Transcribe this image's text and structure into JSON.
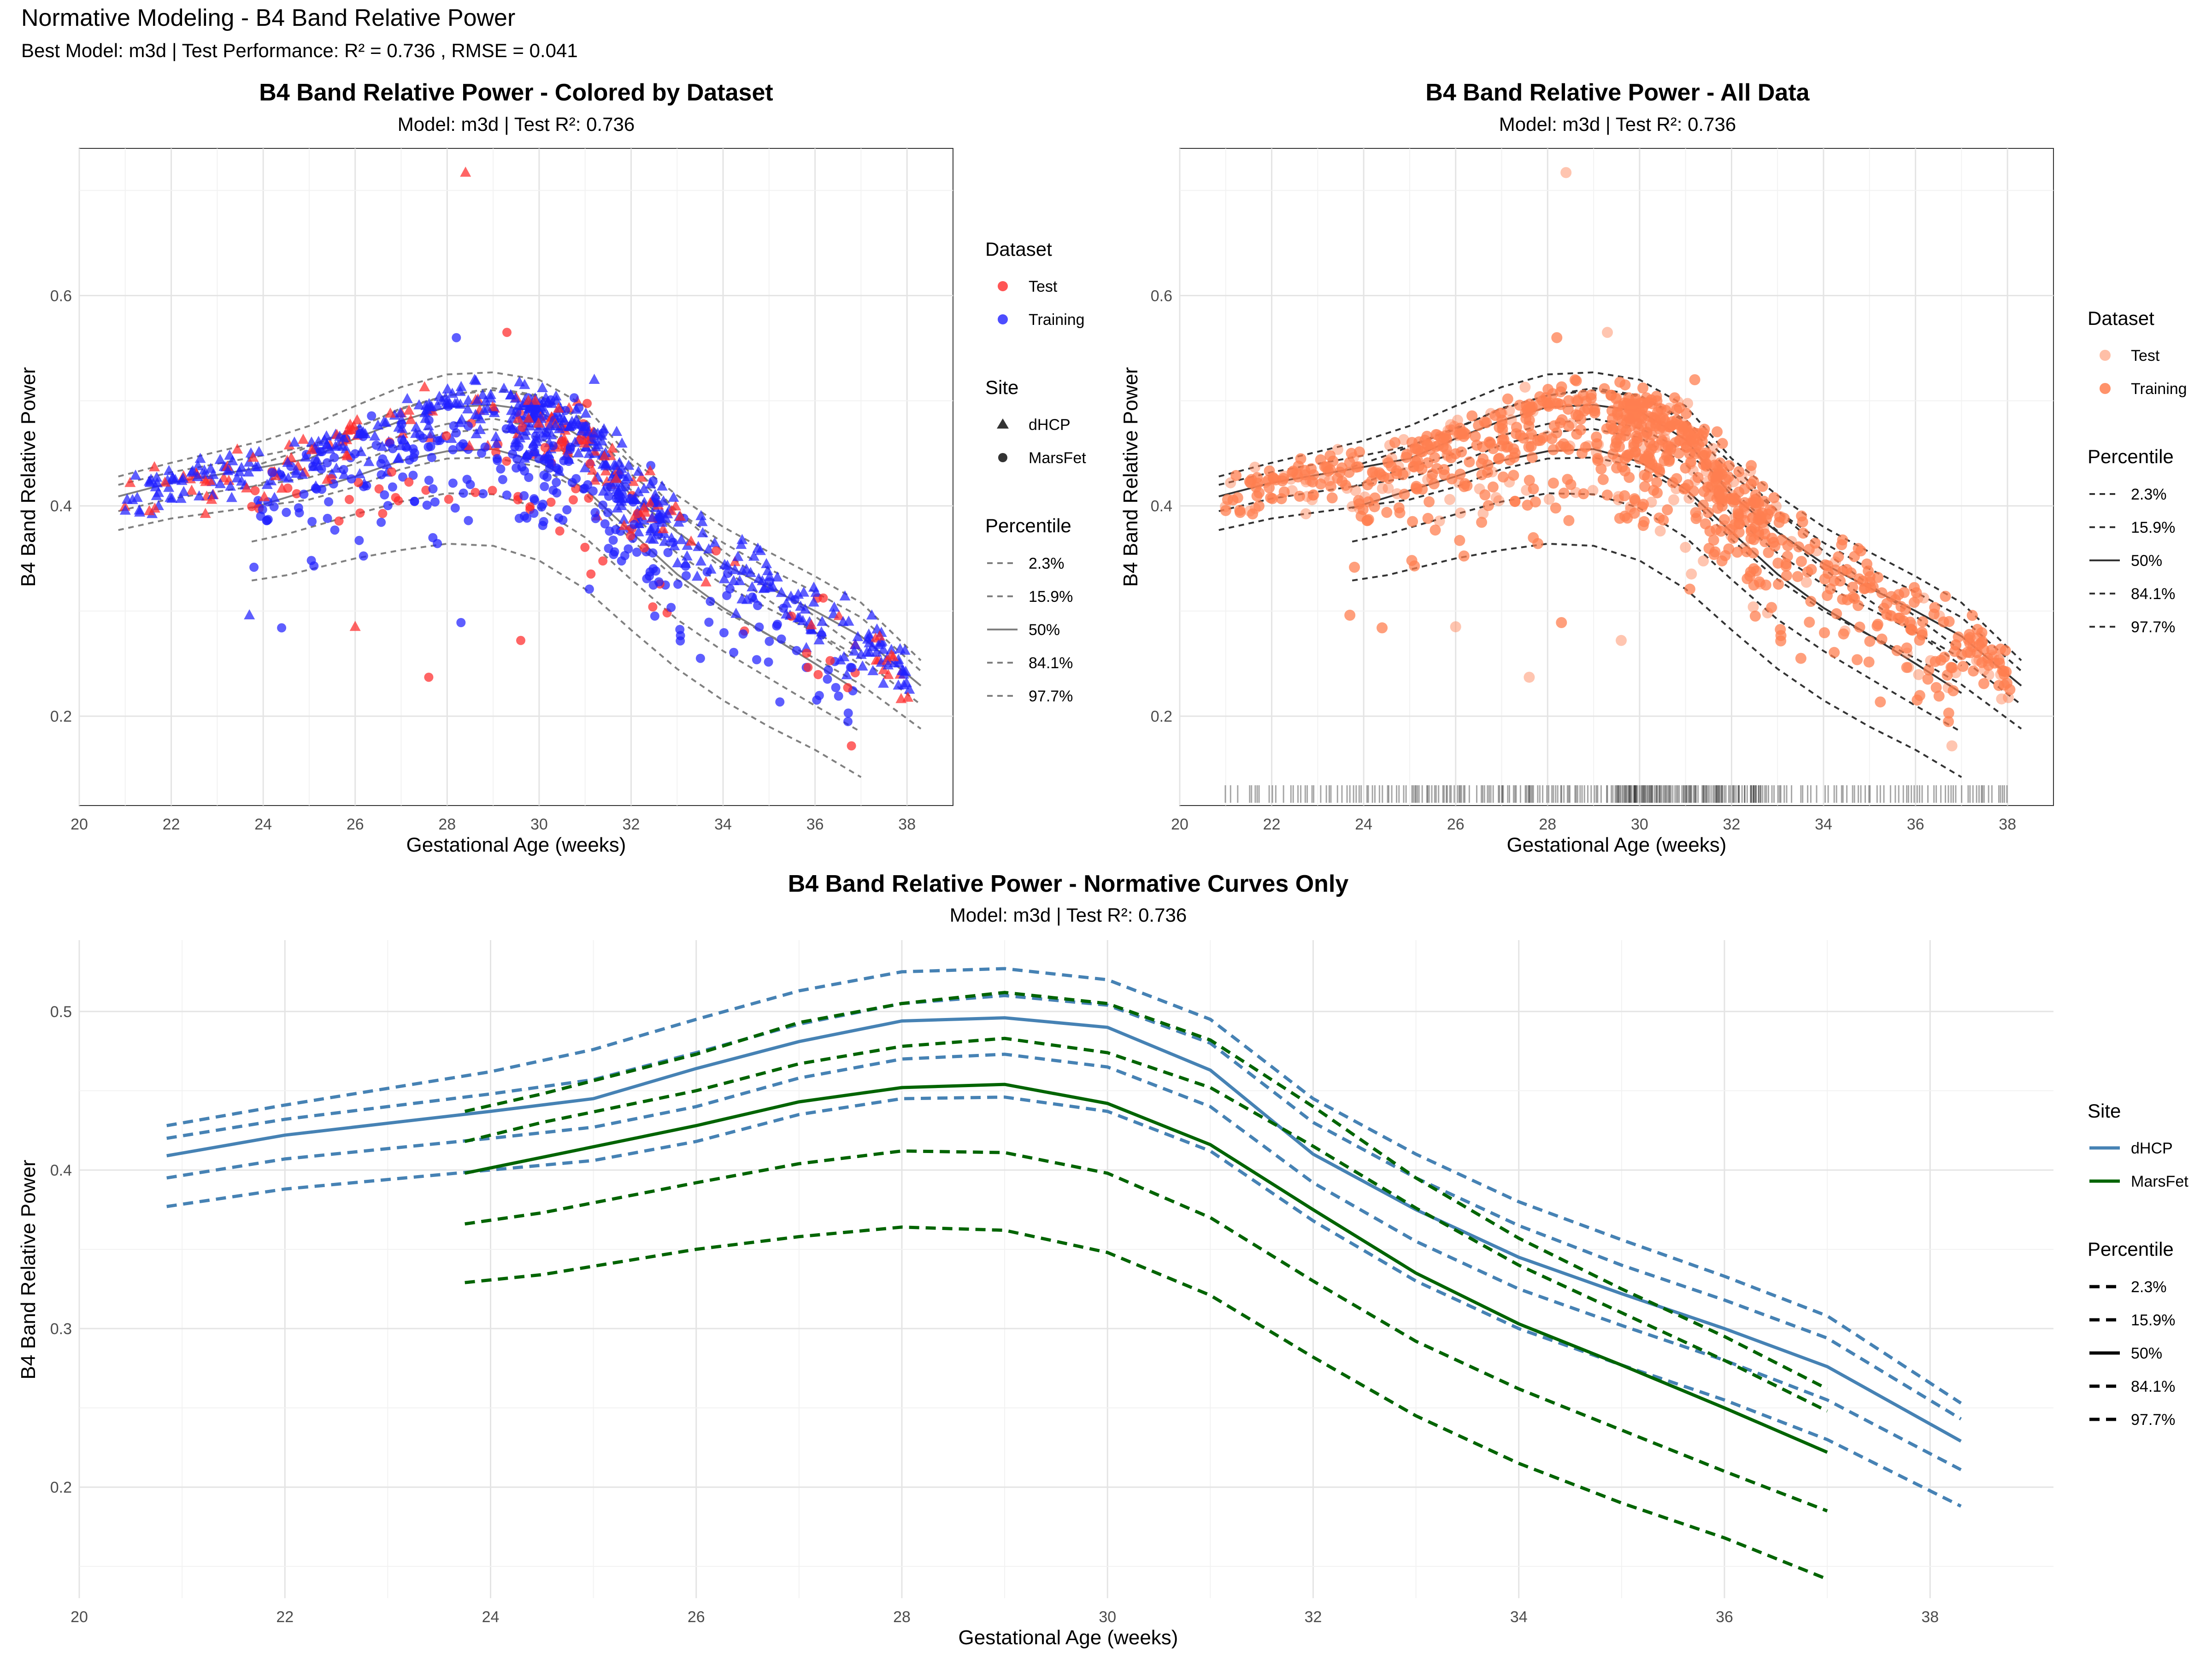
{
  "page": {
    "title": "Normative Modeling - B4 Band Relative Power",
    "subtitle": "Best Model: m3d | Test Performance: R² = 0.736 , RMSE = 0.041"
  },
  "colors": {
    "test": "#ff2a2a",
    "training": "#2020ff",
    "all_data": "#ff7f50",
    "curve_gray": "#808080",
    "curve_dark": "#333333",
    "dhcp": "#4682b4",
    "marsfet": "#006400"
  },
  "legends": {
    "dataset_title": "Dataset",
    "dataset_items": [
      "Test",
      "Training"
    ],
    "site_title": "Site",
    "site_items": [
      "dHCP",
      "MarsFet"
    ],
    "percentile_title": "Percentile",
    "percentile_items": [
      "2.3%",
      "15.9%",
      "50%",
      "84.1%",
      "97.7%"
    ]
  },
  "chart_data": [
    {
      "type": "scatter",
      "title": "B4 Band Relative Power - Colored by Dataset",
      "subtitle": "Model: m3d | Test R²: 0.736",
      "xlabel": "Gestational Age (weeks)",
      "ylabel": "B4 Band Relative Power",
      "xlim": [
        20,
        39
      ],
      "ylim": [
        0.115,
        0.74
      ],
      "xticks": [
        20,
        22,
        24,
        26,
        28,
        30,
        32,
        34,
        36,
        38
      ],
      "yticks": [
        0.2,
        0.4,
        0.6
      ],
      "grid": true,
      "legend_position": "right",
      "point_color_by": "Dataset",
      "point_shape_by": "Site",
      "curves": "gray",
      "points_note": "approx. 1000 points; Test shown red, Training blue; dHCP triangles, MarsFet circles",
      "outliers": [
        [
          28.4,
          0.717
        ],
        [
          28.2,
          0.56
        ],
        [
          29.3,
          0.565
        ],
        [
          31.2,
          0.52
        ],
        [
          27.6,
          0.237
        ],
        [
          24.4,
          0.284
        ],
        [
          26,
          0.285
        ],
        [
          28.3,
          0.289
        ],
        [
          29.6,
          0.272
        ],
        [
          23.7,
          0.296
        ]
      ]
    },
    {
      "type": "scatter",
      "title": "B4 Band Relative Power - All Data",
      "subtitle": "Model: m3d | Test R²: 0.736",
      "xlabel": "Gestational Age (weeks)",
      "ylabel": "B4 Band Relative Power",
      "xlim": [
        20,
        39
      ],
      "ylim": [
        0.115,
        0.74
      ],
      "xticks": [
        20,
        22,
        24,
        26,
        28,
        30,
        32,
        34,
        36,
        38
      ],
      "yticks": [
        0.2,
        0.4,
        0.6
      ],
      "grid": true,
      "legend_position": "right",
      "rug": true,
      "curves": "dark"
    },
    {
      "type": "line",
      "title": "B4 Band Relative Power - Normative Curves Only",
      "subtitle": "Model: m3d | Test R²: 0.736",
      "xlabel": "Gestational Age (weeks)",
      "ylabel": "B4 Band Relative Power",
      "xlim": [
        20,
        39.2
      ],
      "ylim": [
        0.13,
        0.545
      ],
      "xticks": [
        20,
        22,
        24,
        26,
        28,
        30,
        32,
        34,
        36,
        38
      ],
      "yticks": [
        0.2,
        0.3,
        0.4,
        0.5
      ],
      "grid": true,
      "legend_position": "right",
      "series": [
        {
          "name": "dHCP",
          "percentile": "2.3%",
          "x": [
            20.85,
            22,
            24,
            25,
            26,
            27,
            28,
            29,
            30,
            31,
            32,
            33,
            34,
            35,
            36,
            37,
            38.3
          ],
          "y": [
            0.377,
            0.388,
            0.4,
            0.406,
            0.418,
            0.435,
            0.445,
            0.446,
            0.437,
            0.412,
            0.368,
            0.33,
            0.3,
            0.277,
            0.255,
            0.23,
            0.188
          ]
        },
        {
          "name": "dHCP",
          "percentile": "15.9%",
          "x": [
            20.85,
            22,
            24,
            25,
            26,
            27,
            28,
            29,
            30,
            31,
            32,
            33,
            34,
            35,
            36,
            37,
            38.3
          ],
          "y": [
            0.395,
            0.407,
            0.42,
            0.427,
            0.44,
            0.458,
            0.47,
            0.473,
            0.465,
            0.44,
            0.392,
            0.355,
            0.325,
            0.302,
            0.28,
            0.255,
            0.211
          ]
        },
        {
          "name": "dHCP",
          "percentile": "50%",
          "x": [
            20.85,
            22,
            24,
            25,
            26,
            27,
            28,
            29,
            30,
            31,
            32,
            33,
            34,
            35,
            36,
            37,
            38.3
          ],
          "y": [
            0.409,
            0.422,
            0.437,
            0.445,
            0.464,
            0.481,
            0.494,
            0.496,
            0.49,
            0.463,
            0.41,
            0.375,
            0.345,
            0.322,
            0.3,
            0.276,
            0.229
          ]
        },
        {
          "name": "dHCP",
          "percentile": "84.1%",
          "x": [
            20.85,
            22,
            24,
            25,
            26,
            27,
            28,
            29,
            30,
            31,
            32,
            33,
            34,
            35,
            36,
            37,
            38.3
          ],
          "y": [
            0.42,
            0.432,
            0.448,
            0.457,
            0.474,
            0.492,
            0.505,
            0.51,
            0.504,
            0.48,
            0.43,
            0.395,
            0.365,
            0.34,
            0.318,
            0.294,
            0.243
          ]
        },
        {
          "name": "dHCP",
          "percentile": "97.7%",
          "x": [
            20.85,
            22,
            24,
            25,
            26,
            27,
            28,
            29,
            30,
            31,
            32,
            33,
            34,
            35,
            36,
            37,
            38.3
          ],
          "y": [
            0.428,
            0.441,
            0.462,
            0.476,
            0.495,
            0.513,
            0.525,
            0.527,
            0.52,
            0.495,
            0.445,
            0.41,
            0.38,
            0.356,
            0.333,
            0.308,
            0.253
          ]
        },
        {
          "name": "MarsFet",
          "percentile": "2.3%",
          "x": [
            23.75,
            24.5,
            26,
            27,
            28,
            29,
            30,
            31,
            32,
            33,
            34,
            35,
            36,
            37
          ],
          "y": [
            0.329,
            0.334,
            0.35,
            0.358,
            0.364,
            0.362,
            0.348,
            0.321,
            0.282,
            0.245,
            0.215,
            0.19,
            0.168,
            0.142
          ]
        },
        {
          "name": "MarsFet",
          "percentile": "15.9%",
          "x": [
            23.75,
            24.5,
            26,
            27,
            28,
            29,
            30,
            31,
            32,
            33,
            34,
            35,
            36,
            37
          ],
          "y": [
            0.366,
            0.373,
            0.392,
            0.404,
            0.412,
            0.411,
            0.398,
            0.37,
            0.33,
            0.292,
            0.262,
            0.236,
            0.21,
            0.185
          ]
        },
        {
          "name": "MarsFet",
          "percentile": "50%",
          "x": [
            23.75,
            24.5,
            26,
            27,
            28,
            29,
            30,
            31,
            32,
            33,
            34,
            35,
            36,
            37
          ],
          "y": [
            0.398,
            0.408,
            0.428,
            0.443,
            0.452,
            0.454,
            0.442,
            0.416,
            0.375,
            0.335,
            0.303,
            0.277,
            0.25,
            0.222
          ]
        },
        {
          "name": "MarsFet",
          "percentile": "84.1%",
          "x": [
            23.75,
            24.5,
            26,
            27,
            28,
            29,
            30,
            31,
            32,
            33,
            34,
            35,
            36,
            37
          ],
          "y": [
            0.418,
            0.43,
            0.45,
            0.467,
            0.478,
            0.483,
            0.474,
            0.452,
            0.415,
            0.376,
            0.34,
            0.31,
            0.28,
            0.248
          ]
        },
        {
          "name": "MarsFet",
          "percentile": "97.7%",
          "x": [
            23.75,
            24.5,
            26,
            27,
            28,
            29,
            30,
            31,
            32,
            33,
            34,
            35,
            36,
            37
          ],
          "y": [
            0.437,
            0.448,
            0.473,
            0.493,
            0.505,
            0.512,
            0.505,
            0.482,
            0.44,
            0.395,
            0.357,
            0.325,
            0.295,
            0.262
          ]
        }
      ]
    }
  ]
}
